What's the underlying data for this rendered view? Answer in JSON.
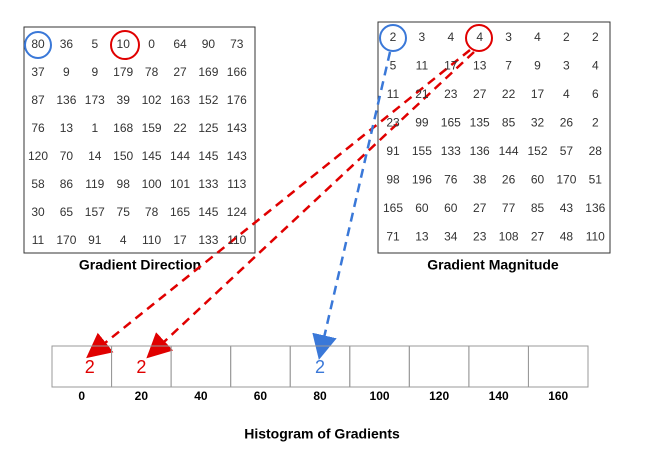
{
  "direction": {
    "label": "Gradient Direction",
    "rows": [
      [
        "80",
        "36",
        "5",
        "10",
        "0",
        "64",
        "90",
        "73"
      ],
      [
        "37",
        "9",
        "9",
        "179",
        "78",
        "27",
        "169",
        "166"
      ],
      [
        "87",
        "136",
        "173",
        "39",
        "102",
        "163",
        "152",
        "176"
      ],
      [
        "76",
        "13",
        "1",
        "168",
        "159",
        "22",
        "125",
        "143"
      ],
      [
        "120",
        "70",
        "14",
        "150",
        "145",
        "144",
        "145",
        "143"
      ],
      [
        "58",
        "86",
        "119",
        "98",
        "100",
        "101",
        "133",
        "113"
      ],
      [
        "30",
        "65",
        "157",
        "75",
        "78",
        "165",
        "145",
        "124"
      ],
      [
        "11",
        "170",
        "91",
        "4",
        "110",
        "17",
        "133",
        "110"
      ]
    ]
  },
  "magnitude": {
    "label": "Gradient Magnitude",
    "rows": [
      [
        "2",
        "3",
        "4",
        "4",
        "3",
        "4",
        "2",
        "2"
      ],
      [
        "5",
        "11",
        "17",
        "13",
        "7",
        "9",
        "3",
        "4"
      ],
      [
        "11",
        "21",
        "23",
        "27",
        "22",
        "17",
        "4",
        "6"
      ],
      [
        "23",
        "99",
        "165",
        "135",
        "85",
        "32",
        "26",
        "2"
      ],
      [
        "91",
        "155",
        "133",
        "136",
        "144",
        "152",
        "57",
        "28"
      ],
      [
        "98",
        "196",
        "76",
        "38",
        "26",
        "60",
        "170",
        "51"
      ],
      [
        "165",
        "60",
        "60",
        "27",
        "77",
        "85",
        "43",
        "136"
      ],
      [
        "71",
        "13",
        "34",
        "23",
        "108",
        "27",
        "48",
        "110"
      ]
    ]
  },
  "histogram": {
    "title": "Histogram of Gradients",
    "bins": [
      {
        "label": "0",
        "value": "2",
        "color": "#e00000"
      },
      {
        "label": "20",
        "value": "2",
        "color": "#e00000"
      },
      {
        "label": "40"
      },
      {
        "label": "60"
      },
      {
        "label": "80",
        "value": "2",
        "color": "#3a78d8"
      },
      {
        "label": "100"
      },
      {
        "label": "120"
      },
      {
        "label": "140"
      },
      {
        "label": "160"
      }
    ]
  }
}
